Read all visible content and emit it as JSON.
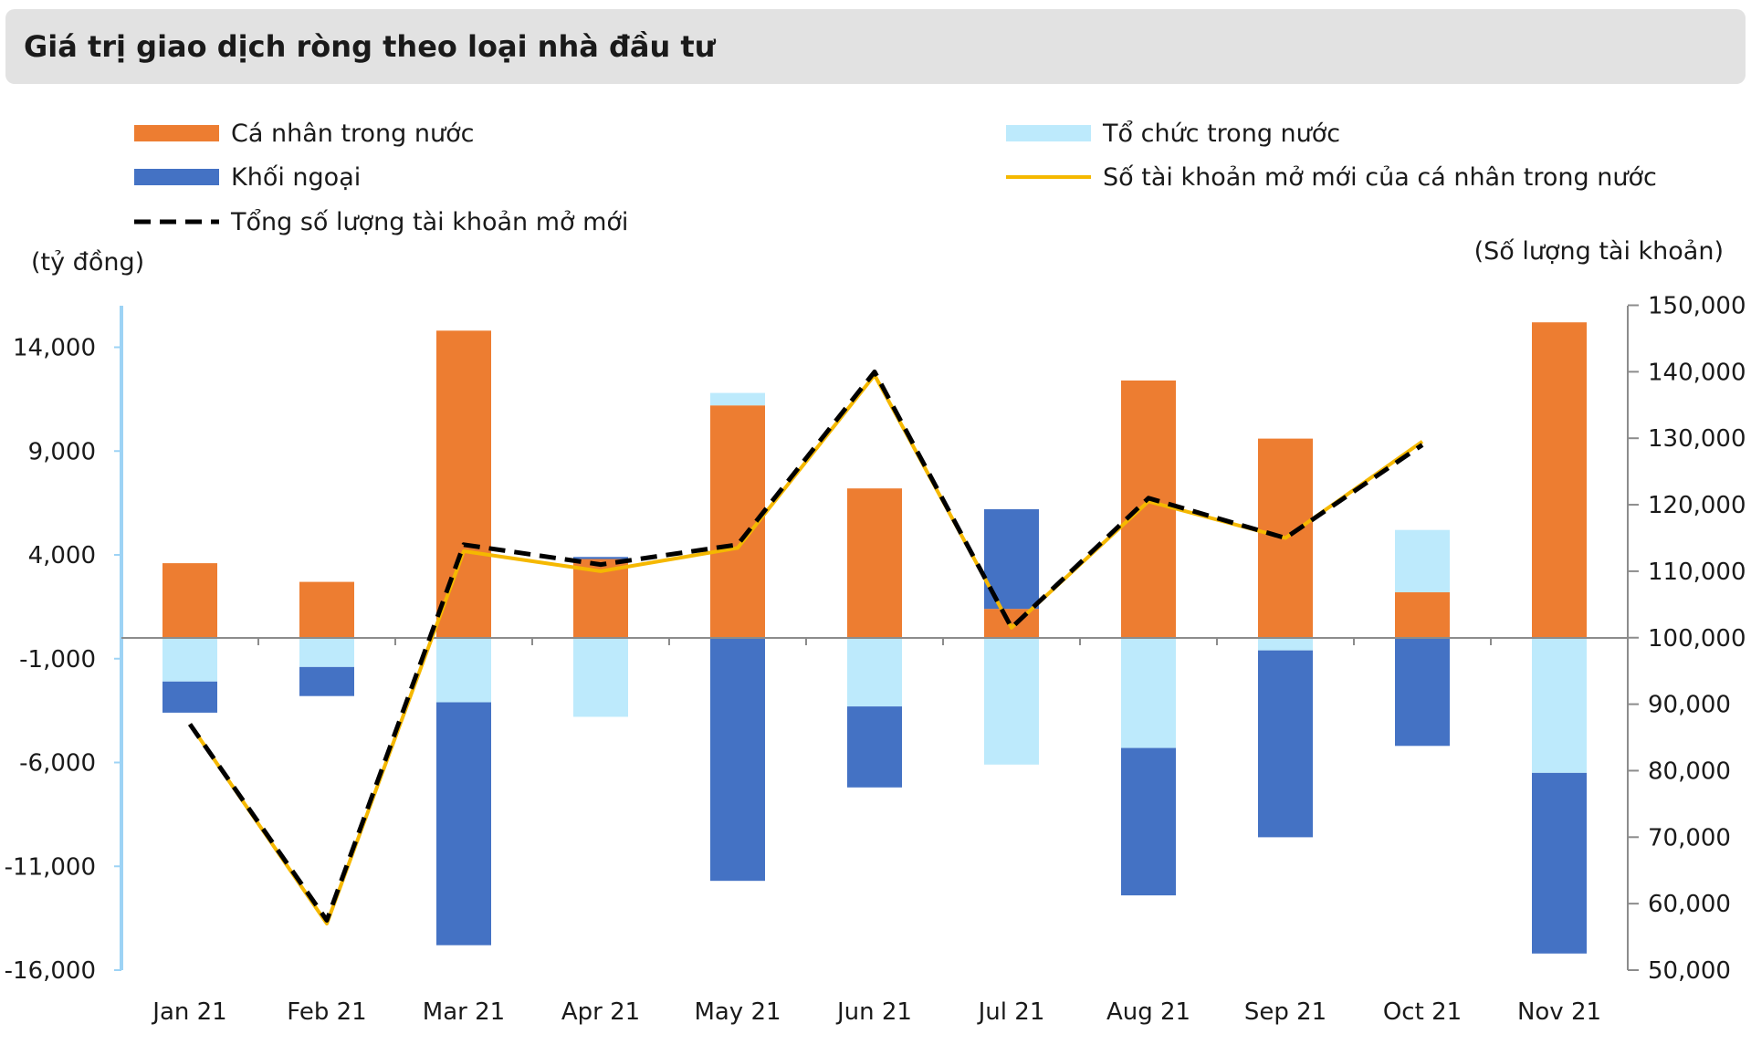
{
  "chart_data": {
    "type": "bar",
    "title": "Giá trị giao dịch ròng theo loại nhà đầu tư",
    "left_axis_label": "(tỷ đồng)",
    "right_axis_label": "(Số lượng tài khoản)",
    "categories": [
      "Jan 21",
      "Feb 21",
      "Mar 21",
      "Apr 21",
      "May 21",
      "Jun 21",
      "Jul 21",
      "Aug 21",
      "Sep 21",
      "Oct 21",
      "Nov 21"
    ],
    "left_ylim": [
      -16000,
      16000
    ],
    "left_ticks": [
      14000,
      9000,
      4000,
      -1000,
      -6000,
      -11000,
      -16000
    ],
    "left_tick_labels": [
      "14,000",
      "9,000",
      "4,000",
      "-1,000",
      "-6,000",
      "-11,000",
      "-16,000"
    ],
    "right_ylim": [
      50000,
      150000
    ],
    "right_ticks": [
      150000,
      140000,
      130000,
      120000,
      110000,
      100000,
      90000,
      80000,
      70000,
      60000,
      50000
    ],
    "right_tick_labels": [
      "150,000",
      "140,000",
      "130,000",
      "120,000",
      "110,000",
      "100,000",
      "90,000",
      "80,000",
      "70,000",
      "60,000",
      "50,000"
    ],
    "bar_series": [
      {
        "name": "Cá nhân trong nước",
        "color": "#ed7d31",
        "values": [
          3600,
          2700,
          14800,
          3800,
          11200,
          7200,
          1400,
          12400,
          9600,
          2200,
          15200
        ]
      },
      {
        "name": "Tổ chức trong nước",
        "color": "#bdeafc",
        "values": [
          -2100,
          -1400,
          -3100,
          -3800,
          600,
          -3300,
          -6100,
          -5300,
          -600,
          3000,
          -6500
        ]
      },
      {
        "name": "Khối ngoại",
        "color": "#4472c4",
        "values": [
          -1500,
          -1400,
          -11700,
          100,
          -11700,
          -3900,
          4800,
          -7100,
          -9000,
          -5200,
          -8700
        ]
      }
    ],
    "line_series": [
      {
        "name": "Số tài khoản mở mới của cá nhân trong nước",
        "color": "#f5b800",
        "style": "solid",
        "values": [
          87000,
          57000,
          113000,
          110000,
          113500,
          139500,
          101500,
          120500,
          115000,
          129500,
          null
        ]
      },
      {
        "name": "Tổng số lượng tài khoản mở mới",
        "color": "#000000",
        "style": "dashed",
        "values": [
          87000,
          57500,
          114000,
          111000,
          114000,
          140000,
          101500,
          121000,
          115000,
          129000,
          null
        ]
      }
    ],
    "legend": [
      {
        "label": "Cá nhân trong nước",
        "kind": "bar",
        "color": "#ed7d31"
      },
      {
        "label": "Tổ chức trong nước",
        "kind": "bar",
        "color": "#bdeafc"
      },
      {
        "label": "Khối ngoại",
        "kind": "bar",
        "color": "#4472c4"
      },
      {
        "label": "Số tài khoản mở mới của cá nhân trong nước",
        "kind": "line",
        "color": "#f5b800"
      },
      {
        "label": "Tổng số lượng tài khoản mở mới",
        "kind": "dashed",
        "color": "#000000"
      }
    ]
  }
}
